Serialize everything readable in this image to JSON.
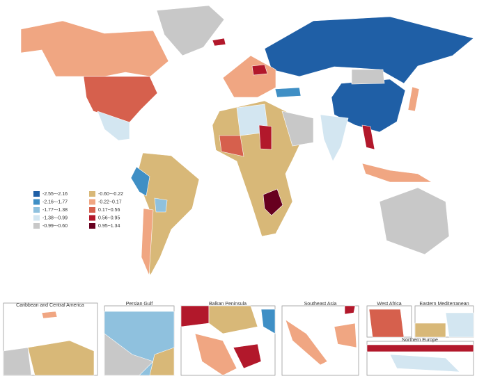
{
  "legend": {
    "items": [
      {
        "label": "-2.55~-2.16",
        "color": "#1f5fa6"
      },
      {
        "label": "-2.16~-1.77",
        "color": "#3f8fc5"
      },
      {
        "label": "-1.77~-1.38",
        "color": "#8fc1de"
      },
      {
        "label": "-1.38~-0.99",
        "color": "#d3e6f1"
      },
      {
        "label": "-0.99~-0.60",
        "color": "#c8c8c8"
      },
      {
        "label": "-0.60~-0.22",
        "color": "#d8b878"
      },
      {
        "label": "-0.22~0.17",
        "color": "#f0a682"
      },
      {
        "label": "0.17~0.56",
        "color": "#d6604d"
      },
      {
        "label": "0.56~0.95",
        "color": "#b2182b"
      },
      {
        "label": "0.95~1.34",
        "color": "#67001f"
      }
    ]
  },
  "insets": [
    {
      "title": "Caribbean and Central America"
    },
    {
      "title": "Persian Gulf"
    },
    {
      "title": "Balkan Peninsula"
    },
    {
      "title": "Southeast Asia"
    },
    {
      "title": "West Africa"
    },
    {
      "title": "Eastern Mediterranean"
    },
    {
      "title": "Northern Europe"
    }
  ]
}
